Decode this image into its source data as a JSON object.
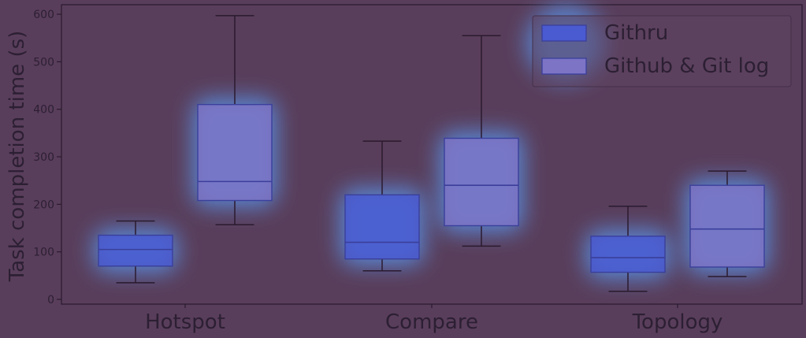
{
  "chart_data": {
    "type": "box",
    "title": "",
    "xlabel": "",
    "ylabel": "Task completion time (s)",
    "ylim": [
      -10,
      620
    ],
    "yticks": [
      0,
      100,
      200,
      300,
      400,
      500,
      600
    ],
    "grid": false,
    "legend_position": "top-right",
    "categories": [
      "Hotspot",
      "Compare",
      "Topology"
    ],
    "series": [
      {
        "name": "Githru",
        "color": "#4a5ad0",
        "boxes": [
          {
            "min": 35,
            "q1": 70,
            "median": 105,
            "q3": 135,
            "max": 165
          },
          {
            "min": 60,
            "q1": 85,
            "median": 120,
            "q3": 220,
            "max": 333
          },
          {
            "min": 17,
            "q1": 57,
            "median": 88,
            "q3": 133,
            "max": 196
          }
        ]
      },
      {
        "name": "Github & Git log",
        "color": "#7d74c6",
        "boxes": [
          {
            "min": 157,
            "q1": 208,
            "median": 248,
            "q3": 410,
            "max": 597
          },
          {
            "min": 112,
            "q1": 155,
            "median": 240,
            "q3": 339,
            "max": 555
          },
          {
            "min": 48,
            "q1": 68,
            "median": 148,
            "q3": 240,
            "max": 270
          }
        ]
      }
    ]
  }
}
